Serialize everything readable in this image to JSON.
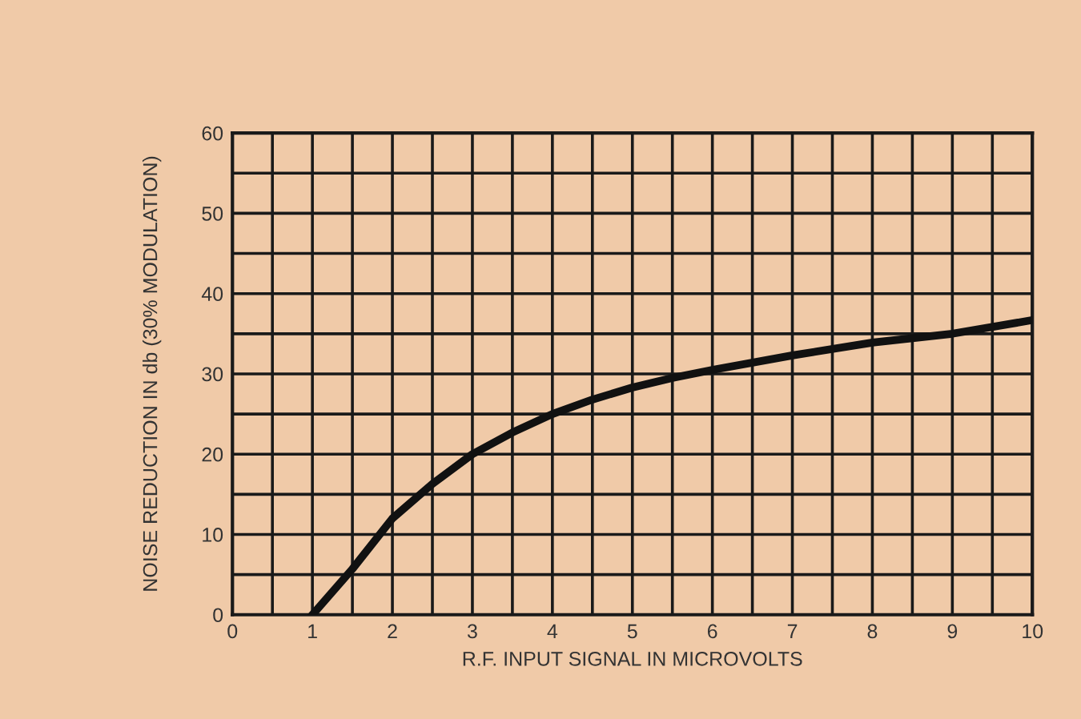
{
  "chart_data": {
    "type": "line",
    "xlabel": "R.F. INPUT SIGNAL IN MICROVOLTS",
    "ylabel": "NOISE REDUCTION IN db (30% MODULATION)",
    "x": [
      1,
      1.5,
      2,
      2.5,
      3,
      3.5,
      4,
      4.5,
      5,
      5.5,
      6,
      7,
      8,
      9,
      10
    ],
    "series": [
      {
        "color": "#111111",
        "values": [
          0,
          5.7,
          12,
          16.3,
          20,
          22.7,
          25,
          26.8,
          28.3,
          29.5,
          30.5,
          32.3,
          33.9,
          35,
          36.7
        ]
      }
    ],
    "xlim": [
      0,
      10
    ],
    "ylim": [
      0,
      60
    ],
    "xticks": [
      0,
      {
        "value": 0.5,
        "label": null
      },
      1,
      {
        "value": 1.5,
        "label": null
      },
      2,
      {
        "value": 2.5,
        "label": null
      },
      3,
      {
        "value": 3.5,
        "label": null
      },
      4,
      {
        "value": 4.5,
        "label": null
      },
      5,
      {
        "value": 5.5,
        "label": null
      },
      6,
      {
        "value": 6.5,
        "label": null
      },
      7,
      {
        "value": 7.5,
        "label": null
      },
      8,
      {
        "value": 8.5,
        "label": null
      },
      9,
      {
        "value": 9.5,
        "label": null
      },
      10
    ],
    "yticks": [
      0,
      {
        "value": 5,
        "label": null
      },
      10,
      {
        "value": 15,
        "label": null
      },
      20,
      {
        "value": 25,
        "label": null
      },
      30,
      {
        "value": 35,
        "label": null
      },
      40,
      {
        "value": 45,
        "label": null
      },
      50,
      {
        "value": 55,
        "label": null
      },
      60
    ],
    "grid": true,
    "marker": "none",
    "line_style": "solid"
  }
}
